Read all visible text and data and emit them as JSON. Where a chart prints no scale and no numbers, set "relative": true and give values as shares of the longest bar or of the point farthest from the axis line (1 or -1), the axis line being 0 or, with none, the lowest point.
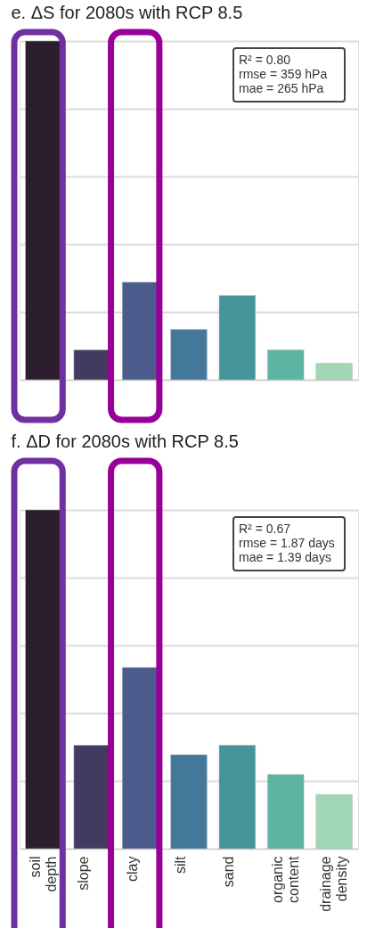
{
  "chart_data": [
    {
      "type": "bar",
      "title": "e. ΔS for 2080s with RCP 8.5",
      "relative": true,
      "grid": "y",
      "tick_labels": false,
      "categories": [
        null,
        null,
        null,
        null,
        null,
        null,
        null
      ],
      "values": [
        1,
        0.088,
        0.288,
        0.149,
        0.249,
        0.088,
        0.049
      ],
      "colors": [
        "#2d1e2f",
        "#433a5f",
        "#4a5b8c",
        "#43789a",
        "#45949a",
        "#5bb5a2",
        "#a1d6b5"
      ],
      "annotations": [
        "R² = 0.80",
        "rmse = 359 hPa",
        "mae = 265 hPa"
      ]
    },
    {
      "type": "bar",
      "title": "f. ΔD for 2080s with RCP 8.5",
      "relative": true,
      "grid": "y",
      "tick_labels": "x",
      "categories": [
        "soil depth",
        "slope",
        "clay",
        "silt",
        "sand",
        "organic content",
        "drainage density"
      ],
      "values": [
        1,
        0.305,
        0.535,
        0.277,
        0.305,
        0.219,
        0.16
      ],
      "colors": [
        "#2d1e2f",
        "#433a5f",
        "#4a5b8c",
        "#43789a",
        "#45949a",
        "#5bb5a2",
        "#a1d6b5"
      ],
      "annotations": [
        "R² = 0.67",
        "rmse = 1.87 days",
        "mae = 1.39 days"
      ]
    }
  ]
}
